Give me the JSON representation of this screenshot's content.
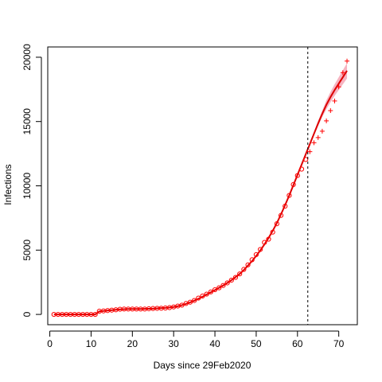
{
  "chart_data": {
    "type": "scatter",
    "title": "",
    "xlabel": "Days since 29Feb2020",
    "ylabel": "Infections",
    "xlim": [
      -0.5,
      74.5
    ],
    "ylim": [
      -800,
      20800
    ],
    "xticks": [
      0,
      10,
      20,
      30,
      40,
      50,
      60,
      70
    ],
    "yticks": [
      0,
      5000,
      10000,
      15000,
      20000
    ],
    "grid": false,
    "legend": "none",
    "cutoff_day": 62.5,
    "series": [
      {
        "marker": "circle",
        "x": [
          1,
          2,
          3,
          4,
          5,
          6,
          7,
          8,
          9,
          10,
          11,
          12,
          13,
          14,
          15,
          16,
          17,
          18,
          19,
          20,
          21,
          22,
          23,
          24,
          25,
          26,
          27,
          28,
          29,
          30,
          31,
          32,
          33,
          34,
          35,
          36,
          37,
          38,
          39,
          40,
          41,
          42,
          43,
          44,
          45,
          46,
          47,
          48,
          49,
          50,
          51,
          52,
          53,
          54,
          55,
          56,
          57,
          58,
          59,
          60,
          61,
          62
        ],
        "values": [
          0,
          0,
          0,
          0,
          0,
          0,
          0,
          0,
          0,
          0,
          0,
          250,
          270,
          300,
          330,
          360,
          400,
          420,
          420,
          420,
          420,
          420,
          420,
          440,
          460,
          470,
          480,
          500,
          530,
          580,
          650,
          720,
          850,
          950,
          1080,
          1270,
          1430,
          1580,
          1750,
          1920,
          2070,
          2250,
          2450,
          2660,
          2880,
          3150,
          3500,
          3850,
          4250,
          4650,
          5050,
          5600,
          5850,
          6400,
          7050,
          7700,
          8420,
          9250,
          10100,
          10800,
          11300,
          12050
        ]
      },
      {
        "marker": "plus",
        "x": [
          63,
          64,
          65,
          66,
          67,
          68,
          69,
          70,
          71,
          72
        ],
        "values": [
          12650,
          13350,
          13750,
          14250,
          15050,
          15850,
          16600,
          17700,
          18800,
          19700
        ]
      }
    ],
    "fit": {
      "x": [
        1,
        2,
        3,
        4,
        5,
        6,
        7,
        8,
        9,
        10,
        11,
        12,
        13,
        14,
        15,
        16,
        17,
        18,
        19,
        20,
        21,
        22,
        23,
        24,
        25,
        26,
        27,
        28,
        29,
        30,
        31,
        32,
        33,
        34,
        35,
        36,
        37,
        38,
        39,
        40,
        41,
        42,
        43,
        44,
        45,
        46,
        47,
        48,
        49,
        50,
        51,
        52,
        53,
        54,
        55,
        56,
        57,
        58,
        59,
        60,
        61,
        62,
        63,
        64,
        65,
        66,
        67,
        68,
        69,
        70,
        71,
        72
      ],
      "values": [
        0,
        0,
        0,
        0,
        0,
        0,
        0,
        0,
        0,
        0,
        0,
        240,
        270,
        300,
        330,
        360,
        390,
        410,
        420,
        420,
        420,
        420,
        430,
        440,
        450,
        470,
        490,
        510,
        540,
        580,
        640,
        720,
        820,
        940,
        1070,
        1220,
        1380,
        1550,
        1720,
        1890,
        2070,
        2250,
        2450,
        2660,
        2900,
        3150,
        3450,
        3800,
        4150,
        4550,
        4980,
        5450,
        5950,
        6500,
        7100,
        7780,
        8500,
        9250,
        10050,
        10850,
        11650,
        12450,
        13250,
        14050,
        14850,
        15600,
        16300,
        16900,
        17450,
        17950,
        18450,
        18950
      ],
      "band_lower": [
        0,
        0,
        0,
        0,
        0,
        0,
        0,
        0,
        0,
        0,
        0,
        240,
        270,
        300,
        330,
        360,
        390,
        410,
        420,
        420,
        420,
        420,
        430,
        440,
        450,
        470,
        490,
        510,
        540,
        580,
        640,
        720,
        820,
        940,
        1070,
        1220,
        1380,
        1550,
        1720,
        1890,
        2070,
        2250,
        2450,
        2660,
        2900,
        3150,
        3450,
        3800,
        4150,
        4550,
        4980,
        5450,
        5950,
        6500,
        7100,
        7780,
        8500,
        9250,
        10050,
        10850,
        11650,
        12450,
        13150,
        13900,
        14650,
        15350,
        15950,
        16500,
        17000,
        17450,
        17900,
        18350
      ],
      "band_upper": [
        0,
        0,
        0,
        0,
        0,
        0,
        0,
        0,
        0,
        0,
        0,
        240,
        270,
        300,
        330,
        360,
        390,
        410,
        420,
        420,
        420,
        420,
        430,
        440,
        450,
        470,
        490,
        510,
        540,
        580,
        640,
        720,
        820,
        940,
        1070,
        1220,
        1380,
        1550,
        1720,
        1890,
        2070,
        2250,
        2450,
        2660,
        2900,
        3150,
        3450,
        3800,
        4150,
        4550,
        4980,
        5450,
        5950,
        6500,
        7100,
        7780,
        8500,
        9250,
        10050,
        10850,
        11650,
        12450,
        13350,
        14200,
        15050,
        15850,
        16650,
        17300,
        17900,
        18450,
        19000,
        19550
      ]
    },
    "colors": {
      "points": "#ff0000",
      "fit": "#dd0000",
      "band": "#f4a6b5",
      "axis": "#000000",
      "cutoff": "#000000"
    }
  }
}
